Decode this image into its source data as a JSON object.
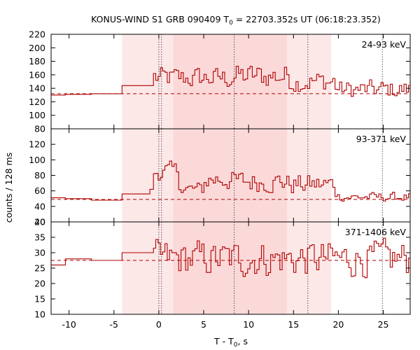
{
  "chart_data": {
    "type": "line",
    "title": "KONUS-WIND S1 GRB 090409 T",
    "title_sub": "0",
    "title_rest": " = 22703.352s UT (06:18:23.352)",
    "xlabel": "T - T",
    "xlabel_sub": "0",
    "xlabel_rest": ", s",
    "ylabel": "counts / 128 ms",
    "xlim": [
      -12,
      28
    ],
    "xticks": [
      -10,
      -5,
      0,
      5,
      10,
      15,
      20,
      25
    ],
    "bands": [
      {
        "from": -4.1,
        "to": 1.6,
        "color": "#fde8e8"
      },
      {
        "from": 1.6,
        "to": 14.3,
        "color": "#fbd9d9"
      },
      {
        "from": 14.3,
        "to": 19.2,
        "color": "#fde8e8"
      }
    ],
    "vlines": [
      0.0,
      0.3,
      8.4,
      16.6,
      24.9
    ],
    "line_color": "#b00000",
    "colors": {
      "band_light": "#fde8e8",
      "band_dark": "#fbd9d9",
      "series": "#b00000"
    },
    "panels": [
      {
        "name": "24-93 keV",
        "ylim": [
          80,
          220
        ],
        "yticks": [
          80,
          100,
          120,
          140,
          160,
          180,
          200,
          220
        ],
        "baseline": 132,
        "pre": [
          [
            -12,
            130
          ],
          [
            -10.4,
            131
          ],
          [
            -7.5,
            132
          ],
          [
            -4.1,
            144
          ],
          [
            -1.0,
            144
          ]
        ],
        "dynamic": {
          "start": -0.6,
          "end": 28,
          "step": 0.256,
          "base": 132,
          "segments": [
            [
              -0.6,
              8,
              155,
              14
            ],
            [
              8,
              14.5,
              158,
              16
            ],
            [
              14.5,
              19.5,
              150,
              14
            ],
            [
              19.5,
              28,
              138,
              12
            ]
          ]
        }
      },
      {
        "name": "93-371 keV",
        "ylim": [
          20,
          140
        ],
        "yticks": [
          20,
          40,
          60,
          80,
          100,
          120
        ],
        "baseline": 49,
        "pre": [
          [
            -12,
            51
          ],
          [
            -10.4,
            50
          ],
          [
            -7.5,
            48
          ],
          [
            -4.1,
            56
          ],
          [
            -1.0,
            62
          ]
        ],
        "dynamic": {
          "start": -0.6,
          "end": 28,
          "step": 0.256,
          "base": 49,
          "segments": [
            [
              -0.6,
              2,
              85,
              10
            ],
            [
              2,
              5,
              62,
              8
            ],
            [
              5,
              8,
              75,
              12
            ],
            [
              8,
              14,
              72,
              12
            ],
            [
              14,
              19.5,
              68,
              12
            ],
            [
              19.5,
              28,
              52,
              5
            ]
          ]
        }
      },
      {
        "name": "371-1406 keV",
        "ylim": [
          10,
          40
        ],
        "yticks": [
          10,
          15,
          20,
          25,
          30,
          35,
          40
        ],
        "baseline": 27.5,
        "pre": [
          [
            -12,
            26
          ],
          [
            -10.4,
            28
          ],
          [
            -7.5,
            27.5
          ],
          [
            -4.1,
            30
          ],
          [
            -1.0,
            30
          ]
        ],
        "dynamic": {
          "start": -0.6,
          "end": 28,
          "step": 0.256,
          "base": 27.5,
          "segments": [
            [
              -0.6,
              28,
              28,
              5
            ]
          ]
        }
      }
    ]
  }
}
